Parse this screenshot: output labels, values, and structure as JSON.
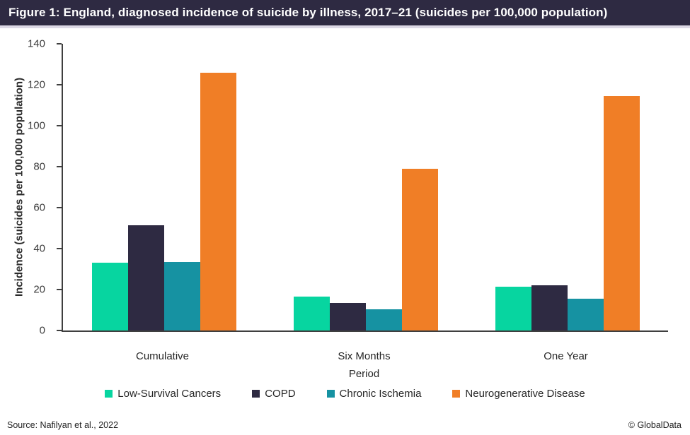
{
  "title_bar": {
    "text": "Figure 1: England, diagnosed incidence of suicide by illness, 2017–21 (suicides per 100,000 population)",
    "bg_color": "#2E2A42",
    "text_color": "#FFFFFF",
    "strip_color": "#DCD8E5"
  },
  "chart_data": {
    "type": "bar",
    "title": "Figure 1: England, diagnosed incidence of suicide by illness, 2017–21 (suicides per 100,000 population)",
    "categories": [
      "Cumulative",
      "Six Months",
      "One Year"
    ],
    "series": [
      {
        "name": "Low-Survival Cancers",
        "color": "#07D5A0",
        "values": [
          33,
          16.5,
          21.5
        ]
      },
      {
        "name": "COPD",
        "color": "#2E2A42",
        "values": [
          51.5,
          13.5,
          22
        ]
      },
      {
        "name": "Chronic Ischemia",
        "color": "#1692A2",
        "values": [
          33.5,
          10.5,
          15.5
        ]
      },
      {
        "name": "Neurogenerative Disease",
        "color": "#F07E26",
        "values": [
          126,
          79,
          114.5
        ]
      }
    ],
    "xlabel": "Period",
    "ylabel": "Incidence (suicides per 100,000 population)",
    "ylim": [
      0,
      140
    ],
    "yticks": [
      0,
      20,
      40,
      60,
      80,
      100,
      120,
      140
    ],
    "grid": false,
    "legend_position": "bottom",
    "axis_color": "#3F3F3F"
  },
  "footer": {
    "source": "Source: Nafilyan et al., 2022",
    "copyright": "© GlobalData"
  }
}
